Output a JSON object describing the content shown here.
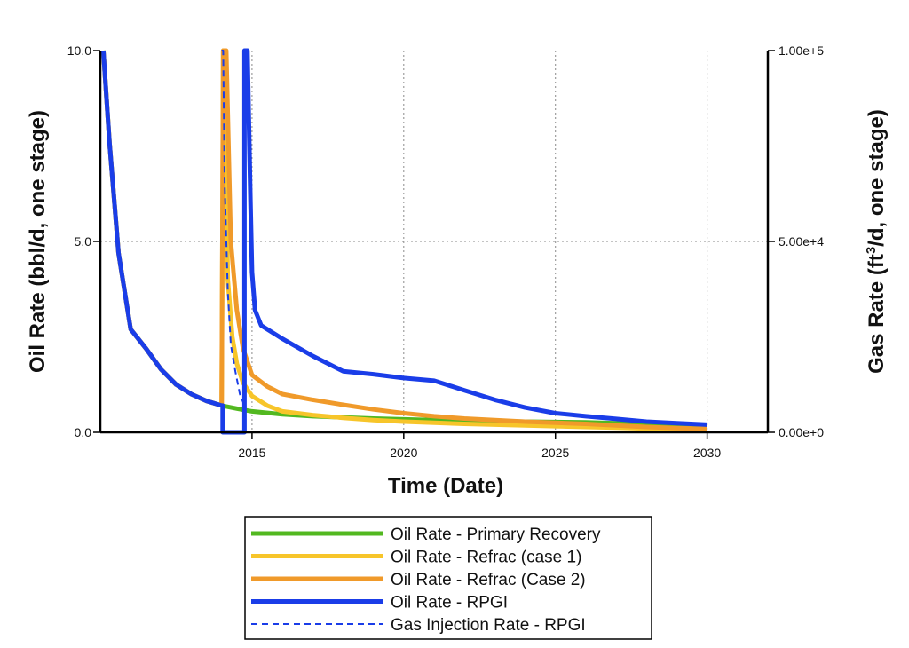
{
  "chart_data": {
    "type": "line",
    "xlabel": "Time (Date)",
    "ylabel_left": "Oil Rate (bbl/d, one stage)",
    "ylabel_right_parts": [
      "Gas Rate (ft",
      "3",
      "/d, one stage)"
    ],
    "xlim": [
      2010,
      2032
    ],
    "ylim_left": [
      0,
      10
    ],
    "ylim_right": [
      0,
      100000
    ],
    "x_ticks": [
      2015,
      2020,
      2025,
      2030
    ],
    "x_tick_labels": [
      "2015",
      "2020",
      "2025",
      "2030"
    ],
    "y_ticks_left": [
      0,
      5,
      10
    ],
    "y_tick_labels_left": [
      "0.0",
      "5.0",
      "10.0"
    ],
    "y_ticks_right": [
      0,
      50000,
      100000
    ],
    "y_tick_labels_right": [
      "0.00e+0",
      "5.00e+4",
      "1.00e+5"
    ],
    "grid": true,
    "legend_position": "below",
    "series": [
      {
        "name": "Oil Rate - Primary Recovery",
        "color": "#52b820",
        "style": "solid",
        "axis": "left",
        "x": [
          2010.1,
          2010.3,
          2010.6,
          2011.0,
          2011.5,
          2012.0,
          2012.5,
          2013.0,
          2013.5,
          2014.0,
          2014.5,
          2015.0,
          2016.0,
          2017.0,
          2018.0,
          2019.0,
          2020.0,
          2021.0,
          2022.0,
          2023.0,
          2024.0,
          2025.0,
          2026.0,
          2027.0,
          2028.0,
          2029.0,
          2030.0
        ],
        "y": [
          10.0,
          7.6,
          4.7,
          2.7,
          2.2,
          1.65,
          1.25,
          1.0,
          0.82,
          0.7,
          0.62,
          0.55,
          0.47,
          0.42,
          0.39,
          0.36,
          0.34,
          0.32,
          0.31,
          0.29,
          0.28,
          0.27,
          0.26,
          0.24,
          0.22,
          0.2,
          0.18
        ]
      },
      {
        "name": "Oil Rate - Refrac (case 1)",
        "color": "#f7c52a",
        "style": "solid",
        "axis": "left",
        "x": [
          2010.1,
          2010.3,
          2010.6,
          2011.0,
          2011.5,
          2012.0,
          2012.5,
          2013.0,
          2013.5,
          2014.0,
          2014.05,
          2014.1,
          2014.2,
          2014.35,
          2014.5,
          2014.7,
          2015.0,
          2015.5,
          2016.0,
          2017.0,
          2018.0,
          2019.0,
          2020.0,
          2021.0,
          2022.0,
          2023.0,
          2024.0,
          2025.0,
          2026.0,
          2027.0,
          2028.0,
          2029.0,
          2030.0
        ],
        "y": [
          10.0,
          7.6,
          4.7,
          2.7,
          2.2,
          1.65,
          1.25,
          1.0,
          0.82,
          0.7,
          10.0,
          10.0,
          4.0,
          2.5,
          1.8,
          1.3,
          0.95,
          0.7,
          0.55,
          0.45,
          0.38,
          0.32,
          0.28,
          0.25,
          0.22,
          0.2,
          0.18,
          0.16,
          0.14,
          0.12,
          0.1,
          0.09,
          0.08
        ]
      },
      {
        "name": "Oil Rate - Refrac (Case 2)",
        "color": "#f09a2a",
        "style": "solid",
        "axis": "left",
        "x": [
          2010.1,
          2010.3,
          2010.6,
          2011.0,
          2011.5,
          2012.0,
          2012.5,
          2013.0,
          2013.5,
          2014.0,
          2014.05,
          2014.15,
          2014.3,
          2014.5,
          2014.7,
          2015.0,
          2015.5,
          2016.0,
          2017.0,
          2018.0,
          2019.0,
          2020.0,
          2021.0,
          2022.0,
          2023.0,
          2024.0,
          2025.0,
          2026.0,
          2027.0,
          2028.0,
          2029.0,
          2030.0
        ],
        "y": [
          10.0,
          7.6,
          4.7,
          2.7,
          2.2,
          1.65,
          1.25,
          1.0,
          0.82,
          0.7,
          10.0,
          10.0,
          5.0,
          3.2,
          2.2,
          1.5,
          1.2,
          1.0,
          0.85,
          0.72,
          0.6,
          0.5,
          0.42,
          0.36,
          0.32,
          0.28,
          0.25,
          0.22,
          0.18,
          0.14,
          0.11,
          0.09
        ]
      },
      {
        "name": "Oil Rate - RPGI",
        "color": "#1a3de8",
        "style": "solid",
        "axis": "left",
        "x": [
          2010.1,
          2010.3,
          2010.6,
          2011.0,
          2011.5,
          2012.0,
          2012.5,
          2013.0,
          2013.5,
          2014.0,
          2014.03,
          2014.03,
          2014.1,
          2014.1,
          2014.75,
          2014.75,
          2014.85,
          2014.95,
          2015.0,
          2015.1,
          2015.3,
          2016.0,
          2017.0,
          2018.0,
          2019.0,
          2020.0,
          2021.0,
          2022.0,
          2023.0,
          2024.0,
          2025.0,
          2026.0,
          2027.0,
          2028.0,
          2029.0,
          2030.0
        ],
        "y": [
          10.0,
          7.6,
          4.7,
          2.7,
          2.2,
          1.65,
          1.25,
          1.0,
          0.82,
          0.7,
          0.7,
          0.0,
          0.0,
          0.0,
          0.0,
          10.0,
          10.0,
          6.0,
          4.2,
          3.2,
          2.8,
          2.45,
          2.0,
          1.6,
          1.52,
          1.42,
          1.35,
          1.1,
          0.85,
          0.65,
          0.5,
          0.42,
          0.35,
          0.28,
          0.24,
          0.2
        ]
      },
      {
        "name": "Gas Injection Rate - RPGI",
        "color": "#1a3de8",
        "style": "dashed",
        "axis": "left",
        "x": [
          2014.0,
          2014.05,
          2014.1,
          2014.2,
          2014.3,
          2014.45,
          2014.6,
          2014.75
        ],
        "y": [
          10.0,
          10.0,
          6.5,
          3.7,
          2.3,
          1.6,
          1.0,
          0.7
        ]
      }
    ]
  }
}
